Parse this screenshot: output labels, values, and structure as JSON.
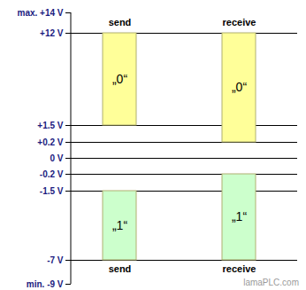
{
  "chart_data": {
    "type": "bar",
    "categories": [
      "send",
      "receive"
    ],
    "series": [
      {
        "name": "„0“",
        "color": "#ffff99",
        "values": [
          [
            1.5,
            12
          ],
          [
            0.2,
            12
          ]
        ]
      },
      {
        "name": "„1“",
        "color": "#ccffcc",
        "values": [
          [
            -7,
            -1.5
          ],
          [
            -7,
            -0.2
          ]
        ]
      }
    ],
    "ylim": [
      -9,
      14
    ],
    "yticks": [
      {
        "value": -9,
        "label": "min. -9 V"
      },
      {
        "value": -7,
        "label": "-7 V"
      },
      {
        "value": -1.5,
        "label": "-1.5 V"
      },
      {
        "value": -0.2,
        "label": "-0.2 V"
      },
      {
        "value": 0,
        "label": "0 V"
      },
      {
        "value": 0.2,
        "label": "+0.2 V"
      },
      {
        "value": 1.5,
        "label": "+1.5 V"
      },
      {
        "value": 12,
        "label": "+12 V"
      },
      {
        "value": 14,
        "label": "max. +14 V"
      }
    ],
    "grid": true,
    "watermark": "lamaPLC.com"
  }
}
